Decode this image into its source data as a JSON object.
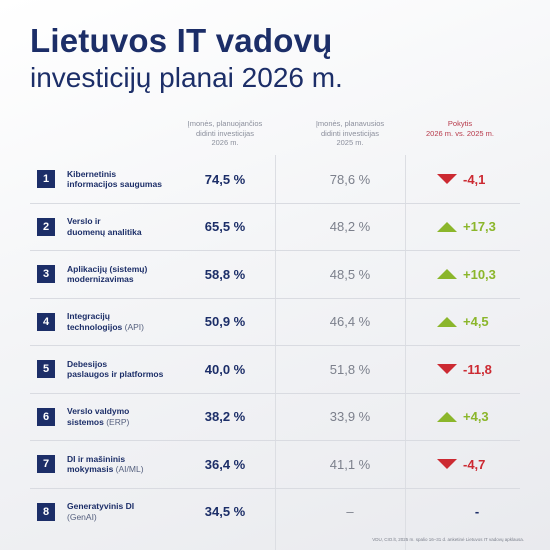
{
  "header": {
    "title": "Lietuvos IT vadovų",
    "subtitle": "investicijų planai 2026 m."
  },
  "columns": {
    "c2026": "Įmonės, planuojančios\ndidinti investicijas\n2026 m.",
    "c2025": "Įmonės, planavusios\ndidinti investicijas\n2025 m.",
    "change": "Pokytis\n2026 m. vs. 2025 m."
  },
  "rows": [
    {
      "num": "1",
      "label": "Kibernetinis\ninformacijos saugumas",
      "sub": "",
      "v2026": "74,5 %",
      "v2025": "78,6 %",
      "change": "-4,1",
      "dir": "down"
    },
    {
      "num": "2",
      "label": "Verslo ir\nduomenų analitika",
      "sub": "",
      "v2026": "65,5 %",
      "v2025": "48,2 %",
      "change": "+17,3",
      "dir": "up"
    },
    {
      "num": "3",
      "label": "Aplikacijų (sistemų)\nmodernizavimas",
      "sub": "",
      "v2026": "58,8 %",
      "v2025": "48,5 %",
      "change": "+10,3",
      "dir": "up"
    },
    {
      "num": "4",
      "label": "Integracijų\ntechnologijos",
      "sub": " (API)",
      "v2026": "50,9 %",
      "v2025": "46,4 %",
      "change": "+4,5",
      "dir": "up"
    },
    {
      "num": "5",
      "label": "Debesijos\npaslaugos ir platformos",
      "sub": "",
      "v2026": "40,0 %",
      "v2025": "51,8 %",
      "change": "-11,8",
      "dir": "down"
    },
    {
      "num": "6",
      "label": "Verslo valdymo\nsistemos",
      "sub": " (ERP)",
      "v2026": "38,2 %",
      "v2025": "33,9 %",
      "change": "+4,3",
      "dir": "up"
    },
    {
      "num": "7",
      "label": "DI ir mašininis\nmokymasis",
      "sub": " (AI/ML)",
      "v2026": "36,4 %",
      "v2025": "41,1 %",
      "change": "-4,7",
      "dir": "down"
    },
    {
      "num": "8",
      "label": "Generatyvinis DI\n",
      "sub": "(GenAI)",
      "v2026": "34,5 %",
      "v2025": "–",
      "change": "-",
      "dir": "none"
    }
  ],
  "footnote": "VDU, CIO.lt, 2025 m. spalio 16–31 d. anketinė Lietuvos IT vadovų apklausa.",
  "chart_data": {
    "type": "table",
    "title": "Lietuvos IT vadovų investicijų planai 2026 m.",
    "columns": [
      "Įmonės, planuojančios didinti investicijas 2026 m.",
      "Įmonės, planavusios didinti investicijas 2025 m.",
      "Pokytis 2026 m. vs. 2025 m."
    ],
    "categories": [
      "Kibernetinis informacijos saugumas",
      "Verslo ir duomenų analitika",
      "Aplikacijų (sistemų) modernizavimas",
      "Integracijų technologijos (API)",
      "Debesijos paslaugos ir platformos",
      "Verslo valdymo sistemos (ERP)",
      "DI ir mašininis mokymasis (AI/ML)",
      "Generatyvinis DI (GenAI)"
    ],
    "series": [
      {
        "name": "2026 m.",
        "values": [
          74.5,
          65.5,
          58.8,
          50.9,
          40.0,
          38.2,
          36.4,
          34.5
        ]
      },
      {
        "name": "2025 m.",
        "values": [
          78.6,
          48.2,
          48.5,
          46.4,
          51.8,
          33.9,
          41.1,
          null
        ]
      },
      {
        "name": "Pokytis",
        "values": [
          -4.1,
          17.3,
          10.3,
          4.5,
          -11.8,
          4.3,
          -4.7,
          null
        ]
      }
    ],
    "colors": {
      "up": "#8bb62b",
      "down": "#cc2a32",
      "brand": "#1c2e68"
    }
  }
}
